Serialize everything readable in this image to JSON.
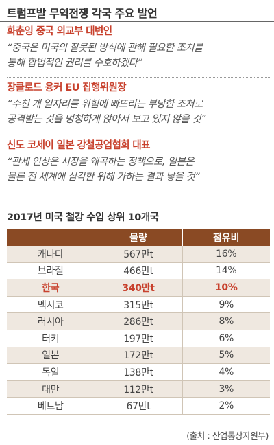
{
  "title": "트럼프발 무역전쟁 각국 주요 발언",
  "quotes": [
    {
      "speaker": "화춘잉 중국 외교부 대변인",
      "lines": [
        "“중국은 미국의 잘못된 방식에 관해 필요한 조치를",
        "통해 합법적인 권리를 수호하겠다”"
      ]
    },
    {
      "speaker": "장클로드 융커 EU 집행위원장",
      "lines": [
        "“수천 개 일자리를 위험에 빠뜨리는 부당한 조처로",
        "공격받는 것을 멍청하게 앉아서 보고 있지 않을 것”"
      ]
    },
    {
      "speaker": "신도 코세이 일본 강철공업협회 대표",
      "lines": [
        "“관세 인상은 시장을 왜곡하는 정책으로, 일본은",
        "물론 전 세계에 심각한 위해 가하는 결과 낳을 것”"
      ]
    }
  ],
  "table": {
    "title": "2017년 미국 철강 수입 상위 10개국",
    "headers": [
      "",
      "물량",
      "점유비"
    ],
    "rows": [
      {
        "country": "캐나다",
        "volume": "567만t",
        "share": "16%"
      },
      {
        "country": "브라질",
        "volume": "466만t",
        "share": "14%"
      },
      {
        "country": "한국",
        "volume": "340만t",
        "share": "10%"
      },
      {
        "country": "멕시코",
        "volume": "315만t",
        "share": "9%"
      },
      {
        "country": "러시아",
        "volume": "286만t",
        "share": "8%"
      },
      {
        "country": "터키",
        "volume": "197만t",
        "share": "6%"
      },
      {
        "country": "일본",
        "volume": "172만t",
        "share": "5%"
      },
      {
        "country": "독일",
        "volume": "138만t",
        "share": "4%"
      },
      {
        "country": "대만",
        "volume": "112만t",
        "share": "3%"
      },
      {
        "country": "베트남",
        "volume": "67만t",
        "share": "2%"
      }
    ],
    "highlight_row": 2
  },
  "source": "(출처 : 산업통상자원부)",
  "colors": {
    "accent_red": "#c8412d",
    "header_brown": "#8a4a24",
    "row_beige": "#efe8e0"
  }
}
